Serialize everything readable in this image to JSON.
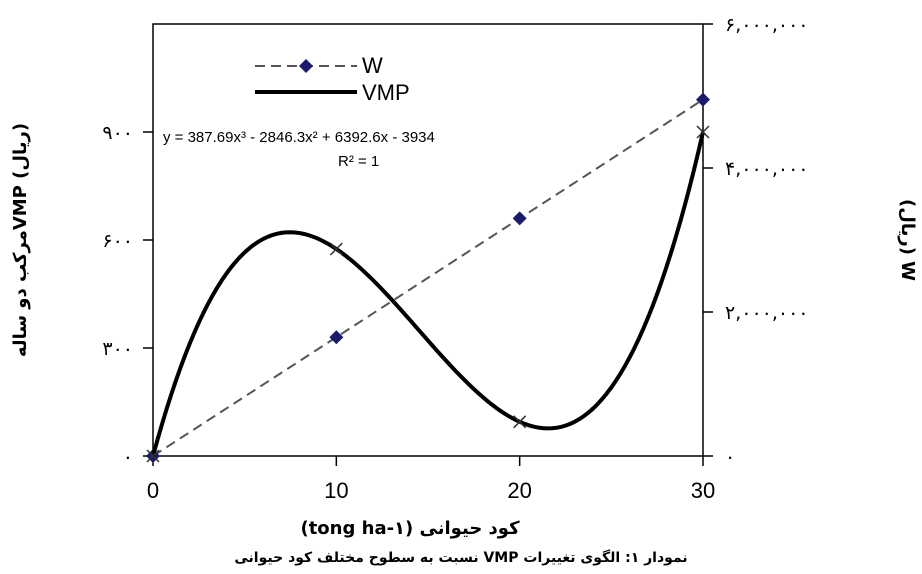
{
  "caption": "نمودار ۱: الگوی تغییرات VMP نسبت به سطوح مختلف کود حیوانی",
  "chart_data": {
    "type": "line",
    "xlabel": "کود حیوانی (tong ha-۱)",
    "ylabel_left": "(ریال) VMPمرکب دو ساله",
    "ylabel_right": "W (ریال)",
    "xlim": [
      0,
      30
    ],
    "ylim_left": [
      0,
      1200
    ],
    "ylim_right": [
      0,
      6000000
    ],
    "x_ticks": [
      "0",
      "10",
      "20",
      "30"
    ],
    "x_tick_values": [
      0,
      10,
      20,
      30
    ],
    "y_left_ticks": [
      "۰",
      "۳۰۰",
      "۶۰۰",
      "۹۰۰"
    ],
    "y_left_tick_values": [
      0,
      300,
      600,
      900
    ],
    "y_right_ticks": [
      "۰",
      "۲,۰۰۰,۰۰۰",
      "۴,۰۰۰,۰۰۰",
      "۶,۰۰۰,۰۰۰"
    ],
    "y_right_tick_values": [
      0,
      2000000,
      4000000,
      6000000
    ],
    "grid": false,
    "legend_position": "top-left",
    "series": [
      {
        "name": "W",
        "axis": "right",
        "style": "dashed",
        "marker": "diamond",
        "color": "#555555",
        "marker_color": "#1a1a6e",
        "x": [
          0,
          10,
          20,
          30
        ],
        "y": [
          0,
          1650000,
          3300000,
          4950000
        ]
      },
      {
        "name": "VMP",
        "axis": "left",
        "style": "solid",
        "marker": "x",
        "color": "#000000",
        "x": [
          0,
          10,
          20,
          30
        ],
        "y": [
          0,
          575,
          95,
          900
        ],
        "fit_equation": {
          "coefficients": [
            -3934,
            6392.6,
            -2846.3,
            387.69
          ]
        }
      }
    ],
    "annotations": [
      {
        "text": "y = 387.69x³ - 2846.3x² + 6392.6x - 3934"
      },
      {
        "text": "R² = 1"
      }
    ]
  }
}
